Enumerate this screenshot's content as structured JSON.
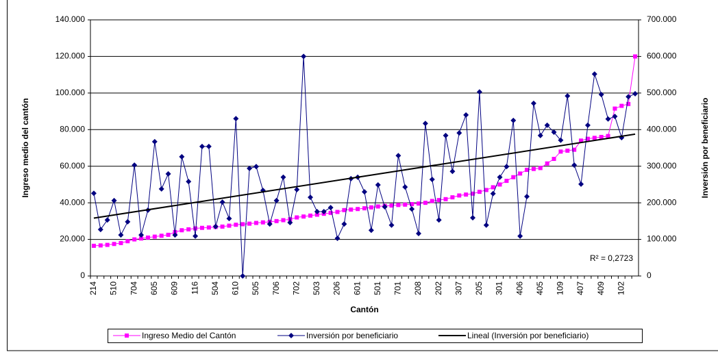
{
  "chart_data": {
    "type": "line",
    "x_label": "Cantón",
    "y_label": "Ingreso medio del cantón",
    "y2_label": "Inversión por beneficiario",
    "categories": [
      "214",
      null,
      null,
      "510",
      null,
      null,
      "704",
      null,
      null,
      "605",
      null,
      null,
      "609",
      null,
      null,
      "116",
      null,
      null,
      "504",
      null,
      null,
      "610",
      null,
      null,
      "505",
      null,
      null,
      "706",
      null,
      null,
      "702",
      null,
      null,
      "503",
      null,
      null,
      "206",
      null,
      null,
      "601",
      null,
      null,
      "501",
      null,
      null,
      "701",
      null,
      null,
      "208",
      null,
      null,
      "202",
      null,
      null,
      "307",
      null,
      null,
      "205",
      null,
      null,
      "301",
      null,
      null,
      "406",
      null,
      null,
      "405",
      null,
      null,
      "109",
      null,
      null,
      "407",
      null,
      null,
      "409",
      null,
      null,
      "102",
      null,
      null
    ],
    "series": [
      {
        "name": "Ingreso Medio del Cantón",
        "color": "#ff00ff",
        "axis": "y",
        "marker": "square",
        "values": [
          16500,
          16700,
          17000,
          17500,
          18000,
          19000,
          20000,
          20500,
          21000,
          21500,
          22000,
          22500,
          24000,
          25000,
          25500,
          26000,
          26300,
          26500,
          26800,
          27000,
          27500,
          28000,
          28300,
          28600,
          29000,
          29300,
          29600,
          30000,
          30500,
          31000,
          32000,
          32500,
          33000,
          33500,
          34000,
          34500,
          35000,
          36000,
          36300,
          36600,
          37000,
          37500,
          38000,
          38300,
          38500,
          38800,
          39000,
          39300,
          39600,
          40000,
          41000,
          41500,
          42000,
          43000,
          44000,
          44500,
          45000,
          46000,
          47000,
          48500,
          50000,
          52000,
          54000,
          56000,
          58000,
          58500,
          59000,
          61500,
          64000,
          68000,
          68500,
          69000,
          74000,
          75000,
          75500,
          76000,
          76500,
          91500,
          93000,
          94000,
          120000
        ]
      },
      {
        "name": "Inversión por beneficiario",
        "color": "#000080",
        "axis": "y2",
        "marker": "diamond",
        "values": [
          226000,
          127000,
          153000,
          206000,
          112000,
          148000,
          303000,
          112000,
          180000,
          367000,
          238000,
          279000,
          112000,
          326000,
          258000,
          109000,
          354000,
          354000,
          135000,
          202000,
          157000,
          430000,
          0,
          294000,
          299000,
          234000,
          142000,
          206000,
          270000,
          146000,
          236000,
          600000,
          215000,
          176000,
          176000,
          187000,
          103000,
          142000,
          266000,
          270000,
          230000,
          125000,
          249000,
          189000,
          139000,
          329000,
          243000,
          183000,
          116000,
          417000,
          264000,
          153000,
          384000,
          286000,
          391000,
          440000,
          159000,
          503000,
          139000,
          225000,
          270000,
          299000,
          425000,
          109000,
          217000,
          472000,
          384000,
          412000,
          393000,
          371000,
          492000,
          303000,
          251000,
          412000,
          552000,
          496000,
          429000,
          436000,
          378000,
          490000,
          498000
        ]
      }
    ],
    "trendline": {
      "name": "Lineal (Inversión por beneficiario)",
      "series": 1,
      "color": "#000000",
      "r2_label": "R² = 0,2723"
    },
    "ylim": [
      0,
      140000
    ],
    "yticks": [
      0,
      {
        "value": 20000,
        "label": "20.000"
      },
      {
        "value": 40000,
        "label": "40.000"
      },
      {
        "value": 60000,
        "label": "60.000"
      },
      {
        "value": 80000,
        "label": "80.000"
      },
      {
        "value": 100000,
        "label": "100.000"
      },
      {
        "value": 120000,
        "label": "120.000"
      },
      {
        "value": 140000,
        "label": "140.000"
      }
    ],
    "y2lim": [
      0,
      700000
    ],
    "y2ticks": [
      0,
      {
        "value": 100000,
        "label": "100.000"
      },
      {
        "value": 200000,
        "label": "200.000"
      },
      {
        "value": 300000,
        "label": "300.000"
      },
      {
        "value": 400000,
        "label": "400.000"
      },
      {
        "value": 500000,
        "label": "500.000"
      },
      {
        "value": 600000,
        "label": "600.000"
      },
      {
        "value": 700000,
        "label": "700.000"
      }
    ],
    "grid": true,
    "legend": "bottom"
  }
}
